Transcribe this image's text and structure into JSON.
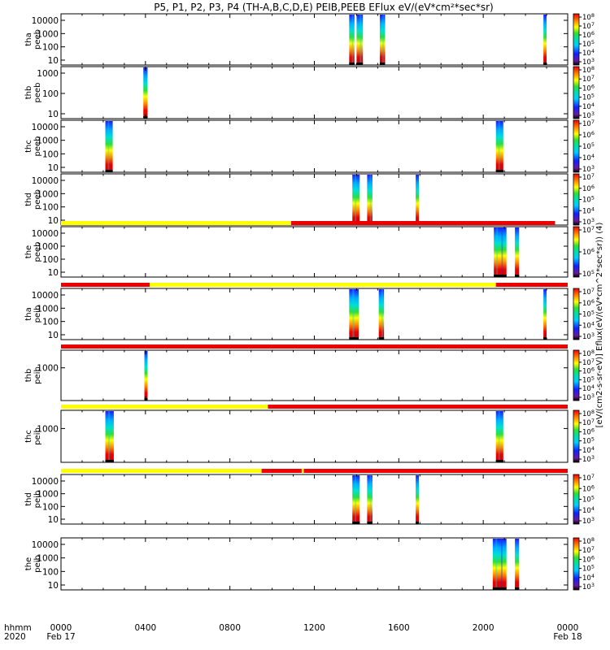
{
  "title": "P5, P1, P2, P3, P4 (TH-A,B,C,D,E) PEIB,PEEB EFlux eV/(eV*cm²*sec*sr)",
  "colorbar_unit": "[eV/(cm2-s-sr-eV)] Eflux(eV/(eV*cm^2*sec*sr)) (4)",
  "chart_data": {
    "type": "heatmap",
    "title": "P5, P1, P2, P3, P4 (TH-A,B,C,D,E) PEIB,PEEB EFlux eV/(eV*cm²*sec*sr)",
    "x_label_left": [
      "hhmm",
      "2020"
    ],
    "xaxis": {
      "range_hours": [
        0,
        24
      ],
      "ticks": [
        {
          "h": 0,
          "label": "0000",
          "sub": "Feb 17"
        },
        {
          "h": 4,
          "label": "0400",
          "sub": ""
        },
        {
          "h": 8,
          "label": "0800",
          "sub": ""
        },
        {
          "h": 12,
          "label": "1200",
          "sub": ""
        },
        {
          "h": 16,
          "label": "1600",
          "sub": ""
        },
        {
          "h": 20,
          "label": "2000",
          "sub": ""
        },
        {
          "h": 24,
          "label": "0000",
          "sub": "Feb 18"
        }
      ]
    },
    "colors": {
      "high": "#dd0000",
      "orange": "#ff8800",
      "yellow": "#ffff00",
      "green": "#33dd33",
      "cyan": "#00ddee",
      "blue": "#1030ff",
      "navy": "#140080",
      "purple": "#6a1a9a",
      "black": "#000000",
      "mode_low": "#ffff00",
      "mode_high": "#ee0000"
    },
    "panels": [
      {
        "id": "tha-peeb",
        "ylabel": [
          "tha",
          "peeb"
        ],
        "yticks": [
          "10000",
          "1000",
          "100",
          "10"
        ],
        "bursts": [
          [
            13.65,
            13.9
          ],
          [
            14.0,
            14.3
          ],
          [
            15.1,
            15.35
          ],
          [
            22.85,
            23.0
          ]
        ],
        "cbar": {
          "max": 8,
          "min": 3
        }
      },
      {
        "id": "thb-peeb",
        "ylabel": [
          "thb",
          "peeb"
        ],
        "yticks": [
          "1000",
          "100",
          "10"
        ],
        "bursts": [
          [
            3.9,
            4.1
          ]
        ],
        "cbar": {
          "max": 8,
          "min": 3
        }
      },
      {
        "id": "thc-peeb",
        "ylabel": [
          "thc",
          "peeb"
        ],
        "yticks": [
          "10000",
          "1000",
          "100",
          "10"
        ],
        "bursts": [
          [
            2.1,
            2.45
          ],
          [
            20.6,
            20.95
          ]
        ],
        "cbar": {
          "max": 7,
          "min": 3
        }
      },
      {
        "id": "thd-peeb",
        "ylabel": [
          "thd",
          "peeb"
        ],
        "yticks": [
          "10000",
          "1000",
          "100",
          "10"
        ],
        "bursts": [
          [
            13.8,
            14.15
          ],
          [
            14.5,
            14.75
          ],
          [
            16.8,
            16.95
          ]
        ],
        "cbar": {
          "max": 7,
          "min": 3
        }
      },
      {
        "id": "the-peeb",
        "ylabel": [
          "the",
          "peeb"
        ],
        "yticks": [
          "10000",
          "1000",
          "100",
          "10"
        ],
        "bursts": [
          [
            20.5,
            21.1
          ],
          [
            21.5,
            21.7
          ]
        ],
        "cbar": {
          "max": 7,
          "min": 5
        },
        "mode_bar": [
          [
            0,
            10.9,
            "low"
          ],
          [
            10.9,
            23.4,
            "high"
          ]
        ]
      },
      {
        "id": "tha-peib",
        "ylabel": [
          "tha",
          "peib"
        ],
        "yticks": [
          "10000",
          "1000",
          "100",
          "10"
        ],
        "bursts": [
          [
            13.65,
            14.1
          ],
          [
            15.05,
            15.3
          ],
          [
            22.85,
            23.0
          ]
        ],
        "cbar": {
          "max": 7,
          "min": 3
        },
        "mode_bar": [
          [
            0,
            4.2,
            "high"
          ],
          [
            4.2,
            20.6,
            "low"
          ],
          [
            20.6,
            24.0,
            "high"
          ]
        ]
      },
      {
        "id": "thb-peib",
        "ylabel": [
          "thb",
          "peib"
        ],
        "yticks": [
          "1000"
        ],
        "bursts": [
          [
            3.95,
            4.1
          ]
        ],
        "cbar": {
          "max": 8,
          "min": 3
        },
        "mode_bar": [
          [
            0,
            24.0,
            "high"
          ]
        ]
      },
      {
        "id": "thc-peib",
        "ylabel": [
          "thc",
          "peib"
        ],
        "yticks": [
          "1000"
        ],
        "bursts": [
          [
            2.1,
            2.5
          ],
          [
            20.6,
            20.95
          ]
        ],
        "cbar": {
          "max": 8,
          "min": 3
        },
        "mode_bar": [
          [
            0,
            9.8,
            "low"
          ],
          [
            9.8,
            24.0,
            "high"
          ]
        ]
      },
      {
        "id": "thd-peib",
        "ylabel": [
          "thd",
          "peib"
        ],
        "yticks": [
          "10000",
          "1000",
          "100",
          "10"
        ],
        "bursts": [
          [
            13.8,
            14.15
          ],
          [
            14.5,
            14.75
          ],
          [
            16.8,
            16.95
          ]
        ],
        "cbar": {
          "max": 7,
          "min": 3
        },
        "mode_bar": [
          [
            0,
            9.5,
            "low"
          ],
          [
            9.5,
            11.4,
            "high"
          ],
          [
            11.4,
            11.5,
            "low"
          ],
          [
            11.5,
            24.0,
            "high"
          ]
        ]
      },
      {
        "id": "the-peib",
        "ylabel": [
          "the",
          "peib"
        ],
        "yticks": [
          "10000",
          "1000",
          "100",
          "10"
        ],
        "bursts": [
          [
            20.45,
            21.1
          ],
          [
            21.5,
            21.7
          ]
        ],
        "cbar": {
          "max": 8,
          "min": 3
        }
      }
    ]
  }
}
